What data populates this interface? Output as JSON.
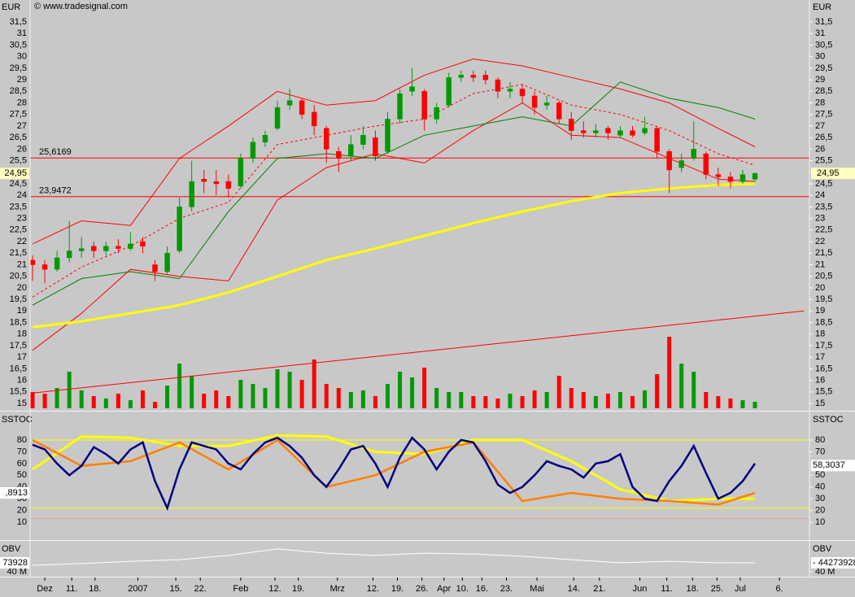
{
  "chart_data": [
    {
      "type": "candlestick",
      "title": "EUR",
      "source": "© www.tradesignal.com",
      "x": [
        0,
        1,
        2,
        3,
        4,
        5,
        6,
        7,
        8,
        9,
        10,
        11,
        12,
        13,
        14,
        15,
        16,
        17,
        18,
        19,
        20,
        21,
        22,
        23,
        24,
        25,
        26,
        27,
        28,
        29,
        30,
        31,
        32,
        33,
        34,
        35,
        36,
        37,
        38,
        39,
        40,
        41,
        42,
        43,
        44,
        45,
        46,
        47,
        48,
        49,
        50,
        51,
        52,
        53,
        54,
        55,
        56,
        57,
        58,
        59
      ],
      "open": [
        21.2,
        21.0,
        20.8,
        21.3,
        21.6,
        21.8,
        21.6,
        21.8,
        21.7,
        22.0,
        21.0,
        20.7,
        21.6,
        23.5,
        24.7,
        24.6,
        24.6,
        24.4,
        25.6,
        26.3,
        26.9,
        27.9,
        28.1,
        27.6,
        26.9,
        25.9,
        25.7,
        26.2,
        26.5,
        25.9,
        27.3,
        28.5,
        28.5,
        27.3,
        27.9,
        29.1,
        29.2,
        29.2,
        29.0,
        28.5,
        28.6,
        28.3,
        27.9,
        28.0,
        27.3,
        26.8,
        26.7,
        26.9,
        26.6,
        26.8,
        26.7,
        26.9,
        25.9,
        25.2,
        25.6,
        25.8,
        24.9,
        24.8,
        24.6,
        24.7
      ],
      "high": [
        21.4,
        21.2,
        21.6,
        22.9,
        22.2,
        22.0,
        22.0,
        22.1,
        22.4,
        22.2,
        21.2,
        21.8,
        23.9,
        25.5,
        25.1,
        25.1,
        24.9,
        25.8,
        26.5,
        26.8,
        28.1,
        28.6,
        28.2,
        27.9,
        27.0,
        26.1,
        26.6,
        27.0,
        26.8,
        27.6,
        28.6,
        29.5,
        28.6,
        28.0,
        29.3,
        29.4,
        29.4,
        29.4,
        29.1,
        28.9,
        28.8,
        28.5,
        28.3,
        28.1,
        27.6,
        27.2,
        27.1,
        27.0,
        27.0,
        27.0,
        27.4,
        27.0,
        26.0,
        25.8,
        27.2,
        25.9,
        25.2,
        25.0,
        25.1,
        25.0
      ],
      "low": [
        20.3,
        20.2,
        20.7,
        21.1,
        21.3,
        21.3,
        21.4,
        21.5,
        21.6,
        21.5,
        20.3,
        20.6,
        21.5,
        23.3,
        24.1,
        24.0,
        23.9,
        24.3,
        25.4,
        26.1,
        26.8,
        27.7,
        27.3,
        26.6,
        25.4,
        25.0,
        25.5,
        26.0,
        25.5,
        25.8,
        27.1,
        28.3,
        26.8,
        27.1,
        27.8,
        28.9,
        28.9,
        28.8,
        28.2,
        28.2,
        28.0,
        27.5,
        27.7,
        27.1,
        26.4,
        26.5,
        26.5,
        26.4,
        26.5,
        26.5,
        26.6,
        25.6,
        24.1,
        25.0,
        25.5,
        24.7,
        24.4,
        24.3,
        24.5,
        24.6
      ],
      "close": [
        21.0,
        20.8,
        21.3,
        21.6,
        21.7,
        21.6,
        21.8,
        21.7,
        21.9,
        21.8,
        20.7,
        21.5,
        23.5,
        24.6,
        24.6,
        24.5,
        24.3,
        25.6,
        26.3,
        26.6,
        27.8,
        28.1,
        27.5,
        27.0,
        26.0,
        25.6,
        26.2,
        26.6,
        25.7,
        27.3,
        28.4,
        28.7,
        27.3,
        27.8,
        29.1,
        29.2,
        29.1,
        29.0,
        28.5,
        28.6,
        28.3,
        27.8,
        28.0,
        27.3,
        26.8,
        26.7,
        26.8,
        26.7,
        26.8,
        26.6,
        26.9,
        25.9,
        25.1,
        25.5,
        26.0,
        24.9,
        24.8,
        24.6,
        24.9,
        24.95
      ],
      "up_color": "#009a00",
      "down_color": "#ff0000",
      "xlim": [
        -0.2,
        63.45
      ],
      "xticks": [
        {
          "value": 1.0,
          "label": "Dez"
        },
        {
          "value": 3.2,
          "label": "11."
        },
        {
          "value": 5.1,
          "label": "18."
        },
        {
          "value": 8.6,
          "label": "2007"
        },
        {
          "value": 11.7,
          "label": "15."
        },
        {
          "value": 13.7,
          "label": "22."
        },
        {
          "value": 17.0,
          "label": "Feb"
        },
        {
          "value": 19.8,
          "label": "12."
        },
        {
          "value": 21.7,
          "label": "19."
        },
        {
          "value": 24.9,
          "label": "Mrz"
        },
        {
          "value": 27.8,
          "label": "12."
        },
        {
          "value": 29.8,
          "label": "19."
        },
        {
          "value": 31.8,
          "label": "26."
        },
        {
          "value": 33.6,
          "label": "Apr"
        },
        {
          "value": 35.1,
          "label": "10."
        },
        {
          "value": 36.7,
          "label": "16."
        },
        {
          "value": 38.7,
          "label": "23."
        },
        {
          "value": 41.2,
          "label": "Mai"
        },
        {
          "value": 44.2,
          "label": "14."
        },
        {
          "value": 46.3,
          "label": "21."
        },
        {
          "value": 49.6,
          "label": "Jun"
        },
        {
          "value": 51.8,
          "label": "11."
        },
        {
          "value": 53.9,
          "label": "18."
        },
        {
          "value": 55.9,
          "label": "25."
        },
        {
          "value": 57.8,
          "label": "Jul"
        },
        {
          "value": 61.0,
          "label": "6."
        }
      ],
      "ylim": [
        14.72,
        32.45
      ],
      "yticks": [
        15,
        {
          "value": 15.5,
          "label": "15,5"
        },
        16,
        {
          "value": 16.5,
          "label": "16,5"
        },
        17,
        {
          "value": 17.5,
          "label": "17,5"
        },
        18,
        {
          "value": 18.5,
          "label": "18,5"
        },
        19,
        {
          "value": 19.5,
          "label": "19,5"
        },
        20,
        {
          "value": 20.5,
          "label": "20,5"
        },
        21,
        {
          "value": 21.5,
          "label": "21,5"
        },
        22,
        {
          "value": 22.5,
          "label": "22,5"
        },
        23,
        {
          "value": 23.5,
          "label": "23,5"
        },
        24,
        {
          "value": 24.5,
          "label": "24,5"
        },
        25,
        {
          "value": 25.5,
          "label": "25,5"
        },
        26,
        {
          "value": 26.5,
          "label": "26,5"
        },
        27,
        {
          "value": 27.5,
          "label": "27,5"
        },
        28,
        {
          "value": 28.5,
          "label": "28,5"
        },
        29,
        {
          "value": 29.5,
          "label": "29,5"
        },
        30,
        {
          "value": 30.5,
          "label": "30,5"
        },
        31,
        {
          "value": 31.5,
          "label": "31,5"
        }
      ],
      "last": {
        "value": 24.95,
        "label": "24,95"
      },
      "levels": [
        {
          "value": 25.6169,
          "label": "25,6169"
        },
        {
          "value": 23.9472,
          "label": "23,9472"
        }
      ],
      "level_color": "#ff0000",
      "lines": [
        {
          "color": "#ff0000",
          "x": [
            0,
            4,
            8,
            12,
            16,
            20,
            24,
            28,
            32,
            36,
            40,
            44,
            48,
            52,
            56,
            59
          ],
          "values": [
            21.9,
            22.9,
            22.7,
            25.6,
            27.0,
            28.5,
            27.9,
            28.1,
            29.2,
            29.9,
            29.6,
            29.1,
            28.6,
            28.0,
            26.9,
            26.1
          ]
        },
        {
          "color": "#ff0000",
          "x": [
            0,
            4,
            8,
            12,
            16,
            20,
            24,
            28,
            32,
            36,
            40,
            44,
            48,
            52,
            56,
            59
          ],
          "values": [
            17.3,
            18.9,
            20.8,
            20.5,
            20.3,
            23.8,
            25.2,
            25.8,
            25.4,
            26.8,
            28.0,
            26.6,
            26.5,
            25.6,
            24.7,
            24.6
          ]
        },
        {
          "color": "#ff0000",
          "dash": true,
          "x": [
            0,
            4,
            8,
            12,
            16,
            20,
            24,
            28,
            32,
            36,
            40,
            44,
            48,
            52,
            56,
            59
          ],
          "values": [
            19.6,
            20.9,
            21.8,
            23.0,
            23.7,
            26.2,
            26.6,
            27.0,
            27.3,
            28.4,
            28.8,
            27.9,
            27.5,
            26.8,
            25.8,
            25.3
          ]
        },
        {
          "color": "#008000",
          "x": [
            0,
            4,
            8,
            12,
            16,
            20,
            24,
            28,
            32,
            36,
            40,
            44,
            48,
            52,
            56,
            59
          ],
          "values": [
            19.25,
            20.4,
            20.7,
            20.4,
            23.3,
            25.6,
            25.8,
            25.6,
            26.6,
            27.0,
            27.4,
            27.0,
            28.9,
            28.2,
            27.8,
            27.3
          ]
        },
        {
          "color": "#ff0000",
          "x": [
            0,
            63
          ],
          "values": [
            15.45,
            19.0
          ]
        },
        {
          "color": "#ffff00",
          "width": 3,
          "x": [
            0,
            4,
            8,
            12,
            16,
            20,
            24,
            28,
            32,
            36,
            40,
            44,
            48,
            52,
            56,
            59
          ],
          "values": [
            18.3,
            18.55,
            18.9,
            19.25,
            19.8,
            20.5,
            21.2,
            21.7,
            22.25,
            22.8,
            23.3,
            23.75,
            24.1,
            24.3,
            24.45,
            24.5
          ]
        }
      ],
      "volume": {
        "y2lim": [
          0,
          100
        ],
        "values": [
          20,
          18,
          25,
          45,
          22,
          15,
          12,
          18,
          10,
          22,
          8,
          28,
          55,
          40,
          18,
          22,
          15,
          35,
          30,
          25,
          48,
          45,
          35,
          60,
          30,
          25,
          20,
          22,
          15,
          30,
          45,
          38,
          50,
          25,
          20,
          20,
          15,
          15,
          12,
          18,
          15,
          22,
          20,
          40,
          25,
          20,
          15,
          18,
          20,
          15,
          22,
          42,
          88,
          55,
          45,
          20,
          15,
          12,
          10,
          8
        ]
      }
    },
    {
      "type": "line",
      "title": "SSTOC",
      "ylim": [
        -4.55,
        103.6
      ],
      "yticks": [
        10,
        20,
        30,
        40,
        50,
        60,
        70,
        80
      ],
      "levels": [
        {
          "value": 80,
          "color": "#ffff00"
        },
        {
          "value": 22,
          "color": "#ffff00"
        },
        {
          "value": 13,
          "color": "#f0a0a0"
        }
      ],
      "series": [
        {
          "color": "#ffff00",
          "width": 3,
          "x": [
            0,
            4,
            8,
            12,
            16,
            20,
            24,
            28,
            32,
            36,
            40,
            44,
            48,
            52,
            56,
            59
          ],
          "values": [
            55,
            83,
            82,
            75,
            75,
            84,
            83,
            70,
            68,
            80,
            80,
            62,
            38,
            28,
            30,
            30
          ]
        },
        {
          "color": "#ff8000",
          "width": 2.5,
          "x": [
            0,
            4,
            8,
            12,
            16,
            20,
            24,
            28,
            32,
            36,
            40,
            44,
            48,
            52,
            56,
            59
          ],
          "values": [
            80,
            58,
            62,
            78,
            55,
            80,
            40,
            50,
            70,
            78,
            28,
            35,
            30,
            28,
            25,
            35
          ]
        },
        {
          "color": "#000080",
          "width": 2.5,
          "x": [
            0,
            1,
            2,
            3,
            4,
            5,
            6,
            7,
            8,
            9,
            10,
            11,
            12,
            13,
            14,
            15,
            16,
            17,
            18,
            19,
            20,
            21,
            22,
            23,
            24,
            25,
            26,
            27,
            28,
            29,
            30,
            31,
            32,
            33,
            34,
            35,
            36,
            37,
            38,
            39,
            40,
            41,
            42,
            43,
            44,
            45,
            46,
            47,
            48,
            49,
            50,
            51,
            52,
            53,
            54,
            55,
            56,
            57,
            58,
            59
          ],
          "values": [
            76,
            72,
            60,
            50,
            58,
            74,
            68,
            60,
            72,
            78,
            45,
            22,
            55,
            78,
            75,
            72,
            60,
            55,
            68,
            78,
            82,
            75,
            65,
            50,
            40,
            55,
            72,
            75,
            60,
            40,
            65,
            82,
            72,
            55,
            70,
            80,
            78,
            62,
            42,
            35,
            40,
            50,
            62,
            58,
            55,
            48,
            60,
            62,
            68,
            40,
            30,
            28,
            45,
            58,
            75,
            52,
            30,
            35,
            45,
            60
          ]
        }
      ],
      "last": {
        "value": 58.3037,
        "label": "58,3037"
      },
      "left_label": ",8913"
    },
    {
      "type": "line",
      "title": "OBV",
      "ylim": [
        37670000,
        54360000
      ],
      "yticks": [
        {
          "value": 40000000,
          "label": "40 M"
        }
      ],
      "series": [
        {
          "color": "#ffffff",
          "width": 1,
          "x": [
            0,
            4,
            8,
            12,
            16,
            20,
            24,
            28,
            32,
            36,
            40,
            44,
            48,
            52,
            56,
            59
          ],
          "values": [
            43100000,
            43900000,
            45000000,
            45800000,
            47800000,
            50900000,
            48900000,
            47800000,
            48900000,
            48500000,
            47400000,
            45800000,
            44300000,
            45000000,
            44300000,
            44273928
          ]
        }
      ],
      "last": {
        "value": 44273928,
        "label": "- 44273928"
      },
      "left_label": "73928"
    }
  ]
}
